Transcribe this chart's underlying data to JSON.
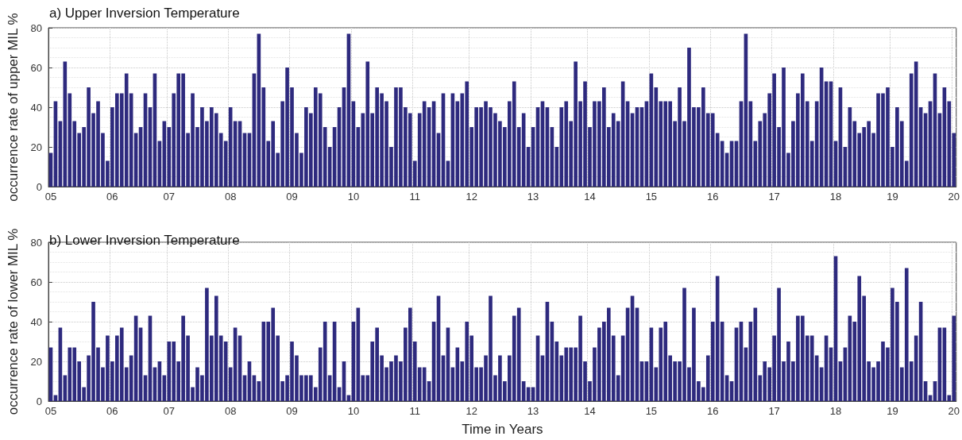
{
  "chart_data": [
    {
      "type": "bar",
      "title": "a) Upper Inversion Temperature",
      "ylabel": "occurrence rate of upper MIL %",
      "categories": [
        "05",
        null,
        null,
        null,
        null,
        null,
        null,
        null,
        null,
        null,
        null,
        null,
        null,
        "06",
        null,
        null,
        null,
        null,
        null,
        null,
        null,
        null,
        null,
        null,
        null,
        "07",
        null,
        null,
        null,
        null,
        null,
        null,
        null,
        null,
        null,
        null,
        null,
        null,
        "08",
        null,
        null,
        null,
        null,
        null,
        null,
        null,
        null,
        null,
        null,
        null,
        null,
        "09",
        null,
        null,
        null,
        null,
        null,
        null,
        null,
        null,
        null,
        null,
        null,
        null,
        "10",
        null,
        null,
        null,
        null,
        null,
        null,
        null,
        null,
        null,
        null,
        null,
        null,
        "11",
        null,
        null,
        null,
        null,
        null,
        null,
        null,
        null,
        null,
        null,
        null,
        "12",
        null,
        null,
        null,
        null,
        null,
        null,
        null,
        null,
        null,
        null,
        null,
        null,
        "13",
        null,
        null,
        null,
        null,
        null,
        null,
        null,
        null,
        null,
        null,
        null,
        "14",
        null,
        null,
        null,
        null,
        null,
        null,
        null,
        null,
        null,
        null,
        null,
        null,
        "15",
        null,
        null,
        null,
        null,
        null,
        null,
        null,
        null,
        null,
        null,
        null,
        null,
        "16",
        null,
        null,
        null,
        null,
        null,
        null,
        null,
        null,
        null,
        null,
        null,
        null,
        "17",
        null,
        null,
        null,
        null,
        null,
        null,
        null,
        null,
        null,
        null,
        null,
        null,
        "18",
        null,
        null,
        null,
        null,
        null,
        null,
        null,
        null,
        null,
        null,
        null,
        "19",
        null,
        null,
        null,
        null,
        null,
        null,
        null,
        null,
        null,
        null,
        null,
        null,
        "20"
      ],
      "values": [
        17,
        43,
        33,
        63,
        47,
        33,
        27,
        30,
        50,
        37,
        43,
        27,
        13,
        40,
        47,
        47,
        57,
        47,
        27,
        30,
        47,
        40,
        57,
        23,
        33,
        30,
        47,
        57,
        57,
        27,
        47,
        30,
        40,
        33,
        40,
        37,
        27,
        23,
        40,
        33,
        33,
        27,
        27,
        57,
        77,
        50,
        23,
        33,
        17,
        43,
        60,
        50,
        27,
        17,
        40,
        37,
        50,
        47,
        30,
        20,
        30,
        40,
        50,
        77,
        43,
        30,
        37,
        63,
        37,
        50,
        47,
        43,
        20,
        50,
        50,
        40,
        37,
        13,
        37,
        43,
        40,
        43,
        27,
        47,
        13,
        47,
        43,
        47,
        53,
        30,
        40,
        40,
        43,
        40,
        37,
        33,
        30,
        43,
        53,
        30,
        37,
        20,
        30,
        40,
        43,
        40,
        30,
        20,
        40,
        43,
        33,
        63,
        43,
        53,
        30,
        43,
        43,
        50,
        30,
        37,
        33,
        53,
        43,
        37,
        40,
        40,
        43,
        57,
        50,
        43,
        43,
        43,
        33,
        50,
        33,
        70,
        40,
        40,
        50,
        37,
        37,
        27,
        23,
        17,
        23,
        23,
        43,
        77,
        43,
        23,
        33,
        37,
        47,
        57,
        30,
        60,
        17,
        33,
        47,
        57,
        43,
        23,
        43,
        60,
        53,
        53,
        23,
        50,
        20,
        40,
        33,
        27,
        30,
        33,
        27,
        47,
        47,
        50,
        20,
        40,
        33,
        13,
        57,
        63,
        40,
        37,
        43,
        57,
        37,
        50,
        43,
        27
      ],
      "color": "#2e2a7e",
      "ylim": [
        0,
        80
      ],
      "yticks": [
        0,
        20,
        40,
        60,
        80
      ],
      "grid": true
    },
    {
      "type": "bar",
      "title": "b) Lower Inversion Temperature",
      "ylabel": "occurrence rate of lower MIL %",
      "xlabel": "Time in Years",
      "categories": [
        "05",
        null,
        null,
        null,
        null,
        null,
        null,
        null,
        null,
        null,
        null,
        null,
        null,
        "06",
        null,
        null,
        null,
        null,
        null,
        null,
        null,
        null,
        null,
        null,
        null,
        "07",
        null,
        null,
        null,
        null,
        null,
        null,
        null,
        null,
        null,
        null,
        null,
        null,
        "08",
        null,
        null,
        null,
        null,
        null,
        null,
        null,
        null,
        null,
        null,
        null,
        null,
        "09",
        null,
        null,
        null,
        null,
        null,
        null,
        null,
        null,
        null,
        null,
        null,
        null,
        "10",
        null,
        null,
        null,
        null,
        null,
        null,
        null,
        null,
        null,
        null,
        null,
        null,
        "11",
        null,
        null,
        null,
        null,
        null,
        null,
        null,
        null,
        null,
        null,
        null,
        "12",
        null,
        null,
        null,
        null,
        null,
        null,
        null,
        null,
        null,
        null,
        null,
        null,
        "13",
        null,
        null,
        null,
        null,
        null,
        null,
        null,
        null,
        null,
        null,
        null,
        "14",
        null,
        null,
        null,
        null,
        null,
        null,
        null,
        null,
        null,
        null,
        null,
        null,
        "15",
        null,
        null,
        null,
        null,
        null,
        null,
        null,
        null,
        null,
        null,
        null,
        null,
        "16",
        null,
        null,
        null,
        null,
        null,
        null,
        null,
        null,
        null,
        null,
        null,
        null,
        "17",
        null,
        null,
        null,
        null,
        null,
        null,
        null,
        null,
        null,
        null,
        null,
        null,
        "18",
        null,
        null,
        null,
        null,
        null,
        null,
        null,
        null,
        null,
        null,
        null,
        "19",
        null,
        null,
        null,
        null,
        null,
        null,
        null,
        null,
        null,
        null,
        null,
        null,
        "20"
      ],
      "values": [
        27,
        3,
        37,
        13,
        27,
        27,
        20,
        7,
        23,
        50,
        27,
        17,
        33,
        20,
        33,
        37,
        17,
        23,
        43,
        37,
        13,
        43,
        17,
        20,
        13,
        30,
        30,
        20,
        43,
        33,
        7,
        17,
        13,
        57,
        33,
        53,
        33,
        30,
        17,
        37,
        33,
        13,
        20,
        13,
        10,
        40,
        40,
        47,
        33,
        10,
        13,
        30,
        23,
        13,
        13,
        13,
        7,
        27,
        40,
        13,
        40,
        7,
        20,
        3,
        40,
        47,
        13,
        13,
        30,
        37,
        23,
        17,
        20,
        23,
        20,
        37,
        47,
        30,
        17,
        17,
        10,
        40,
        53,
        23,
        37,
        17,
        27,
        20,
        40,
        33,
        17,
        17,
        23,
        53,
        13,
        23,
        10,
        23,
        43,
        47,
        10,
        7,
        7,
        33,
        23,
        50,
        40,
        30,
        23,
        27,
        27,
        27,
        43,
        20,
        10,
        27,
        37,
        40,
        47,
        33,
        13,
        33,
        47,
        53,
        47,
        20,
        20,
        37,
        17,
        37,
        40,
        23,
        20,
        20,
        57,
        17,
        47,
        10,
        7,
        23,
        40,
        63,
        40,
        13,
        10,
        37,
        40,
        27,
        40,
        47,
        13,
        20,
        17,
        33,
        57,
        20,
        30,
        20,
        43,
        43,
        33,
        33,
        23,
        17,
        33,
        27,
        73,
        20,
        27,
        43,
        40,
        63,
        53,
        20,
        17,
        20,
        30,
        27,
        57,
        50,
        17,
        67,
        20,
        33,
        50,
        10,
        3,
        10,
        37,
        37,
        3,
        43
      ],
      "color": "#2e2a7e",
      "ylim": [
        0,
        80
      ],
      "yticks": [
        0,
        20,
        40,
        60,
        80
      ],
      "grid": true
    }
  ]
}
